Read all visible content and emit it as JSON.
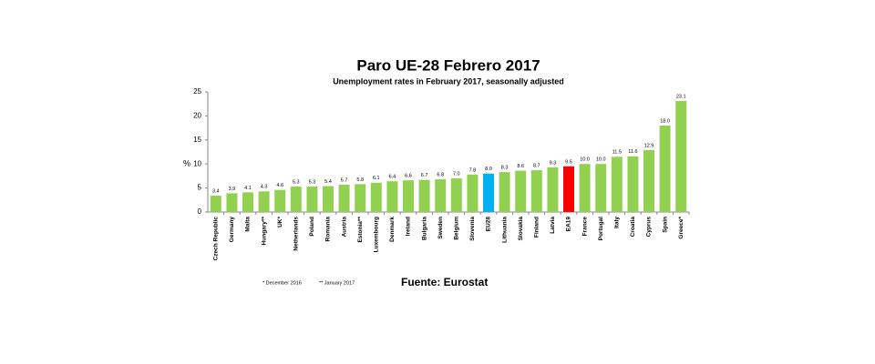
{
  "chart_data": {
    "type": "bar",
    "title": "Paro UE-28 Febrero 2017",
    "subtitle": "Unemployment rates in February 2017, seasonally adjusted",
    "y_label": "%",
    "categories": [
      "Czech Republic",
      "Germany",
      "Malta",
      "Hungary**",
      "UK*",
      "Netherlands",
      "Poland",
      "Romania",
      "Austria",
      "Estonia**",
      "Luxembourg",
      "Denmark",
      "Ireland",
      "Bulgaria",
      "Sweden",
      "Belgium",
      "Slovenia",
      "EU28",
      "Lithuania",
      "Slovakia",
      "Finland",
      "Latvia",
      "EA19",
      "France",
      "Portugal",
      "Italy",
      "Croatia",
      "Cyprus",
      "Spain",
      "Greece*"
    ],
    "values": [
      3.4,
      3.9,
      4.1,
      4.3,
      4.6,
      5.3,
      5.3,
      5.4,
      5.7,
      5.8,
      6.1,
      6.4,
      6.6,
      6.7,
      6.8,
      7.0,
      7.8,
      8.0,
      8.3,
      8.6,
      8.7,
      9.3,
      9.5,
      10.0,
      10.0,
      11.5,
      11.6,
      12.9,
      18.0,
      23.1
    ],
    "value_labels": [
      "3.4",
      "3.9",
      "4.1",
      "4.3",
      "4.6",
      "5.3",
      "5.3",
      "5.4",
      "5.7",
      "5.8",
      "6.1",
      "6.4",
      "6.6",
      "6.7",
      "6.8",
      "7.0",
      "7.8",
      "8.0",
      "8.3",
      "8.6",
      "8.7",
      "9.3",
      "9.5",
      "10.0",
      "10.0",
      "11.5",
      "11.6",
      "12.9",
      "18.0",
      "23.1"
    ],
    "colors": [
      "#92d050",
      "#92d050",
      "#92d050",
      "#92d050",
      "#92d050",
      "#92d050",
      "#92d050",
      "#92d050",
      "#92d050",
      "#92d050",
      "#92d050",
      "#92d050",
      "#92d050",
      "#92d050",
      "#92d050",
      "#92d050",
      "#92d050",
      "#00b0f0",
      "#92d050",
      "#92d050",
      "#92d050",
      "#92d050",
      "#ff0000",
      "#92d050",
      "#92d050",
      "#92d050",
      "#92d050",
      "#92d050",
      "#92d050",
      "#92d050"
    ],
    "ylim": [
      0,
      25
    ],
    "yticks": [
      0,
      5,
      10,
      15,
      20,
      25
    ],
    "grid": false,
    "footnotes": [
      "* December 2016",
      "** January 2017"
    ],
    "source": "Fuente: Eurostat"
  }
}
